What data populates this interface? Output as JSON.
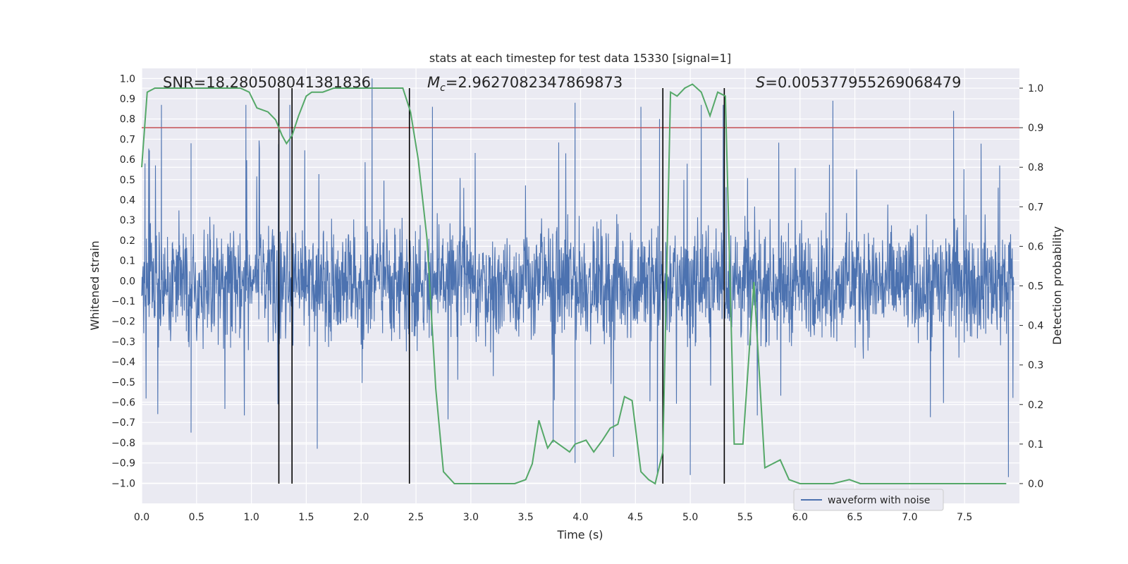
{
  "chart_data": {
    "type": "line",
    "title": "stats at each timestep for test data 15330 [signal=1]",
    "xlabel": "Time (s)",
    "ylabel": "Whitened strain",
    "y2label": "Detection probability",
    "xlim": [
      0.0,
      8.0
    ],
    "ylim": [
      -1.1,
      1.05
    ],
    "y2lim": [
      -0.05,
      1.05
    ],
    "x_ticks": [
      "0.0",
      "0.5",
      "1.0",
      "1.5",
      "2.0",
      "2.5",
      "3.0",
      "3.5",
      "4.0",
      "4.5",
      "5.0",
      "5.5",
      "6.0",
      "6.5",
      "7.0",
      "7.5"
    ],
    "x_tick_values": [
      0.0,
      0.5,
      1.0,
      1.5,
      2.0,
      2.5,
      3.0,
      3.5,
      4.0,
      4.5,
      5.0,
      5.5,
      6.0,
      6.5,
      7.0,
      7.5
    ],
    "y_ticks": [
      "1.0",
      "0.9",
      "0.8",
      "0.7",
      "0.6",
      "0.5",
      "0.4",
      "0.3",
      "0.2",
      "0.1",
      "0.0",
      "-0.1",
      "-0.2",
      "-0.3",
      "-0.4",
      "-0.5",
      "-0.6",
      "-0.7",
      "-0.8",
      "-0.9",
      "-1.0"
    ],
    "y_tick_values": [
      1.0,
      0.9,
      0.8,
      0.7,
      0.6,
      0.5,
      0.4,
      0.3,
      0.2,
      0.1,
      0.0,
      -0.1,
      -0.2,
      -0.3,
      -0.4,
      -0.5,
      -0.6,
      -0.7,
      -0.8,
      -0.9,
      -1.0
    ],
    "y2_ticks": [
      "1.0",
      "0.9",
      "0.8",
      "0.7",
      "0.6",
      "0.5",
      "0.4",
      "0.3",
      "0.2",
      "0.1",
      "0.0"
    ],
    "y2_tick_values": [
      1.0,
      0.9,
      0.8,
      0.7,
      0.6,
      0.5,
      0.4,
      0.3,
      0.2,
      0.1,
      0.0
    ],
    "annotations": {
      "snr": "SNR=18.280508041381836",
      "mc": "M_c=2.9627082347869873",
      "s": "S=0.005377955269068479"
    },
    "legend": {
      "label": "waveform with noise",
      "placement": "lower-right"
    },
    "colors": {
      "background": "#eaeaf2",
      "grid": "#ffffff",
      "waveform": "#4c72b0",
      "probability": "#55a868",
      "threshold": "#c44e52",
      "event_lines": "#000000"
    },
    "threshold": {
      "axis": "y2",
      "value": 0.9
    },
    "event_lines_x": [
      1.25,
      1.37,
      2.44,
      4.75,
      5.31
    ],
    "waveform": {
      "name": "waveform with noise",
      "note": "whitened strain noise time series, 0–8 s; typical envelope about ±0.4, peaks near ±1.0",
      "envelope_low": -0.4,
      "envelope_high": 0.38,
      "spikes": [
        {
          "x": 0.03,
          "y": 0.58
        },
        {
          "x": 0.18,
          "y": 0.87
        },
        {
          "x": 0.45,
          "y": 0.68
        },
        {
          "x": 0.95,
          "y": 0.87
        },
        {
          "x": 1.35,
          "y": 0.87
        },
        {
          "x": 2.1,
          "y": 1.0
        },
        {
          "x": 2.65,
          "y": 0.86
        },
        {
          "x": 3.95,
          "y": 0.88
        },
        {
          "x": 4.55,
          "y": 0.86
        },
        {
          "x": 4.72,
          "y": 0.8
        },
        {
          "x": 5.1,
          "y": 0.87
        },
        {
          "x": 5.3,
          "y": 0.87
        },
        {
          "x": 6.3,
          "y": 0.89
        },
        {
          "x": 7.4,
          "y": 0.84
        },
        {
          "x": 7.82,
          "y": 0.57
        },
        {
          "x": 0.45,
          "y": -0.75
        },
        {
          "x": 1.6,
          "y": -0.83
        },
        {
          "x": 3.95,
          "y": -0.9
        },
        {
          "x": 4.3,
          "y": -0.87
        },
        {
          "x": 5.0,
          "y": -0.96
        },
        {
          "x": 7.9,
          "y": -0.97
        },
        {
          "x": 3.75,
          "y": -0.8
        },
        {
          "x": 4.7,
          "y": -0.95
        }
      ]
    },
    "probability": {
      "name": "detection probability",
      "x": [
        0.0,
        0.05,
        0.12,
        0.2,
        0.35,
        0.5,
        0.7,
        0.9,
        0.98,
        1.05,
        1.15,
        1.22,
        1.28,
        1.32,
        1.37,
        1.43,
        1.5,
        1.55,
        1.65,
        1.75,
        1.85,
        2.0,
        2.2,
        2.38,
        2.45,
        2.52,
        2.6,
        2.68,
        2.75,
        2.85,
        3.0,
        3.2,
        3.4,
        3.5,
        3.56,
        3.62,
        3.7,
        3.75,
        3.8,
        3.9,
        3.95,
        4.05,
        4.12,
        4.2,
        4.27,
        4.34,
        4.4,
        4.47,
        4.55,
        4.62,
        4.68,
        4.75,
        4.82,
        4.88,
        4.95,
        5.02,
        5.1,
        5.18,
        5.25,
        5.32,
        5.4,
        5.48,
        5.58,
        5.68,
        5.75,
        5.82,
        5.9,
        6.0,
        6.1,
        6.3,
        6.45,
        6.55,
        6.7,
        6.9,
        7.1,
        7.3,
        7.5,
        7.7,
        7.88
      ],
      "y": [
        0.8,
        0.99,
        1.0,
        1.0,
        1.0,
        1.0,
        1.0,
        1.0,
        0.99,
        0.95,
        0.94,
        0.92,
        0.88,
        0.86,
        0.88,
        0.93,
        0.98,
        0.99,
        0.99,
        1.0,
        1.0,
        1.0,
        1.0,
        1.0,
        0.94,
        0.82,
        0.62,
        0.24,
        0.03,
        0.0,
        0.0,
        0.0,
        0.0,
        0.01,
        0.05,
        0.16,
        0.09,
        0.11,
        0.1,
        0.08,
        0.1,
        0.11,
        0.08,
        0.11,
        0.14,
        0.15,
        0.22,
        0.21,
        0.03,
        0.01,
        0.0,
        0.08,
        0.99,
        0.98,
        1.0,
        1.01,
        0.99,
        0.93,
        0.99,
        0.98,
        0.1,
        0.1,
        0.51,
        0.04,
        0.05,
        0.06,
        0.01,
        0.0,
        0.0,
        0.0,
        0.01,
        0.0,
        0.0,
        0.0,
        0.0,
        0.0,
        0.0,
        0.0,
        0.0
      ]
    }
  }
}
